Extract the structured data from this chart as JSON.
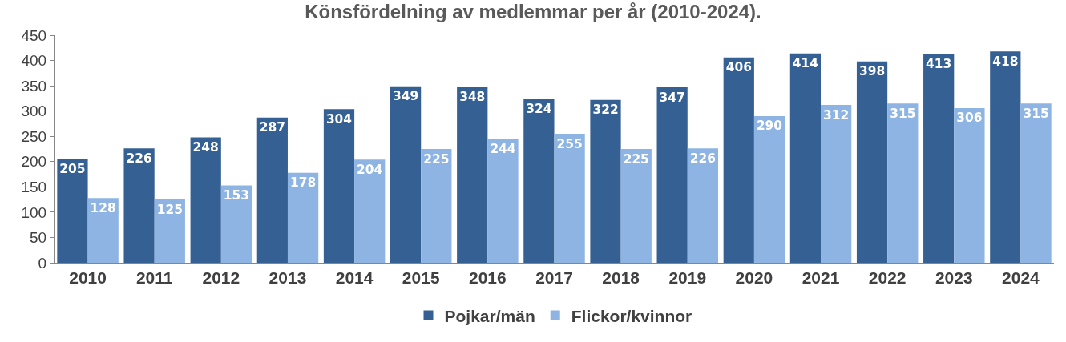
{
  "chart_data": {
    "type": "bar",
    "title": "Könsfördelning av medlemmar per år (2010-2024).",
    "categories": [
      "2010",
      "2011",
      "2012",
      "2013",
      "2014",
      "2015",
      "2016",
      "2017",
      "2018",
      "2019",
      "2020",
      "2021",
      "2022",
      "2023",
      "2024"
    ],
    "series": [
      {
        "name": "Pojkar/män",
        "color": "#356093",
        "values": [
          205,
          226,
          248,
          287,
          304,
          349,
          348,
          324,
          322,
          347,
          406,
          414,
          398,
          413,
          418
        ]
      },
      {
        "name": "Flickor/kvinnor",
        "color": "#8db4e2",
        "values": [
          128,
          125,
          153,
          178,
          204,
          225,
          244,
          255,
          225,
          226,
          290,
          312,
          315,
          306,
          315
        ]
      }
    ],
    "ylim": [
      0,
      450
    ],
    "yticks": [
      0,
      50,
      100,
      150,
      200,
      250,
      300,
      350,
      400,
      450
    ],
    "grid": false,
    "legend": "bottom",
    "data_labels": true
  }
}
